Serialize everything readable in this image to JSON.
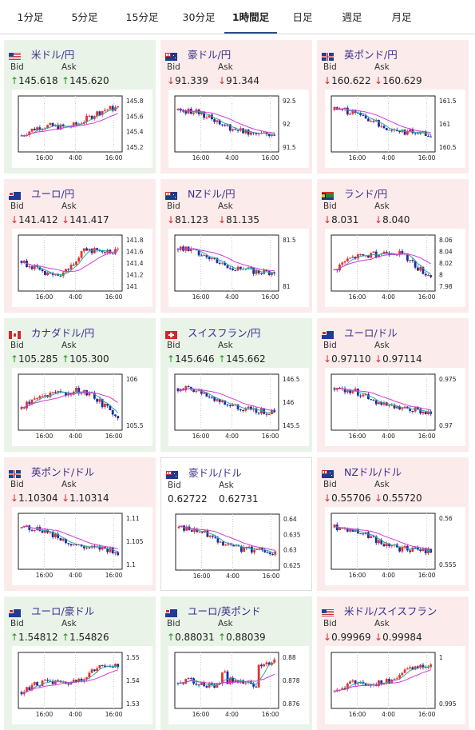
{
  "tabs": [
    {
      "label": "1分足",
      "active": false
    },
    {
      "label": "5分足",
      "active": false
    },
    {
      "label": "15分足",
      "active": false
    },
    {
      "label": "30分足",
      "active": false
    },
    {
      "label": "1時間足",
      "active": true
    },
    {
      "label": "日足",
      "active": false
    },
    {
      "label": "週足",
      "active": false
    },
    {
      "label": "月足",
      "active": false
    }
  ],
  "labels": {
    "bid": "Bid",
    "ask": "Ask"
  },
  "time_labels": [
    "16:00",
    "4:00",
    "16:00"
  ],
  "colors": {
    "up_bg": "#e9f3e7",
    "down_bg": "#fbebeb",
    "up_arrow": "#1d9a1d",
    "down_arrow": "#d22c2c",
    "candle_up": "#e2322c",
    "candle_down": "#1c2f9c",
    "ma1": "#d23ad8",
    "ma2": "#2fa6a8"
  },
  "cards": [
    {
      "name": "米ドル/円",
      "flag": "us",
      "dir": "up",
      "bid": "145.618",
      "ask": "145.620",
      "yticks": [
        "145.8",
        "145.6",
        "145.4",
        "145.2"
      ],
      "trend": "up"
    },
    {
      "name": "豪ドル/円",
      "flag": "au",
      "dir": "down",
      "bid": "91.339",
      "ask": "91.344",
      "yticks": [
        "92.5",
        "92",
        "91.5"
      ],
      "trend": "down"
    },
    {
      "name": "英ポンド/円",
      "flag": "gb",
      "dir": "down",
      "bid": "160.622",
      "ask": "160.629",
      "yticks": [
        "161.5",
        "161",
        "160.5"
      ],
      "trend": "down"
    },
    {
      "name": "ユーロ/円",
      "flag": "eu",
      "dir": "down",
      "bid": "141.412",
      "ask": "141.417",
      "yticks": [
        "141.8",
        "141.6",
        "141.4",
        "141.2",
        "141"
      ],
      "trend": "dip"
    },
    {
      "name": "NZドル/円",
      "flag": "nz",
      "dir": "down",
      "bid": "81.123",
      "ask": "81.135",
      "yticks": [
        "81.5",
        "81"
      ],
      "trend": "down"
    },
    {
      "name": "ランド/円",
      "flag": "za",
      "dir": "down",
      "bid": "8.031",
      "ask": "8.040",
      "yticks": [
        "8.06",
        "8.04",
        "8.02",
        "8",
        "7.98"
      ],
      "trend": "hump"
    },
    {
      "name": "カナダドル/円",
      "flag": "ca",
      "dir": "up",
      "bid": "105.285",
      "ask": "105.300",
      "yticks": [
        "106",
        "105.5"
      ],
      "trend": "hump"
    },
    {
      "name": "スイスフラン/円",
      "flag": "ch",
      "dir": "up",
      "bid": "145.646",
      "ask": "145.662",
      "yticks": [
        "146.5",
        "146",
        "145.5"
      ],
      "trend": "down"
    },
    {
      "name": "ユーロ/ドル",
      "flag": "eu",
      "dir": "down",
      "bid": "0.97110",
      "ask": "0.97114",
      "yticks": [
        "0.975",
        "0.97"
      ],
      "trend": "down"
    },
    {
      "name": "英ポンド/ドル",
      "flag": "gb",
      "dir": "down",
      "bid": "1.10304",
      "ask": "1.10314",
      "yticks": [
        "1.11",
        "1.105",
        "1.1"
      ],
      "trend": "down"
    },
    {
      "name": "豪ドル/ドル",
      "flag": "au",
      "dir": "flat",
      "bid": "0.62722",
      "ask": "0.62731",
      "yticks": [
        "0.64",
        "0.635",
        "0.63",
        "0.625"
      ],
      "trend": "down"
    },
    {
      "name": "NZドル/ドル",
      "flag": "nz",
      "dir": "down",
      "bid": "0.55706",
      "ask": "0.55720",
      "yticks": [
        "0.56",
        "0.555"
      ],
      "trend": "down"
    },
    {
      "name": "ユーロ/豪ドル",
      "flag": "eu",
      "dir": "up",
      "bid": "1.54812",
      "ask": "1.54826",
      "yticks": [
        "1.55",
        "1.54",
        "1.53"
      ],
      "trend": "up"
    },
    {
      "name": "ユーロ/英ポンド",
      "flag": "eu",
      "dir": "up",
      "bid": "0.88031",
      "ask": "0.88039",
      "yticks": [
        "0.88",
        "0.878",
        "0.876"
      ],
      "trend": "spike"
    },
    {
      "name": "米ドル/スイスフラン",
      "flag": "us",
      "dir": "down",
      "bid": "0.99969",
      "ask": "0.99984",
      "yticks": [
        "1",
        "0.995"
      ],
      "trend": "up"
    }
  ]
}
